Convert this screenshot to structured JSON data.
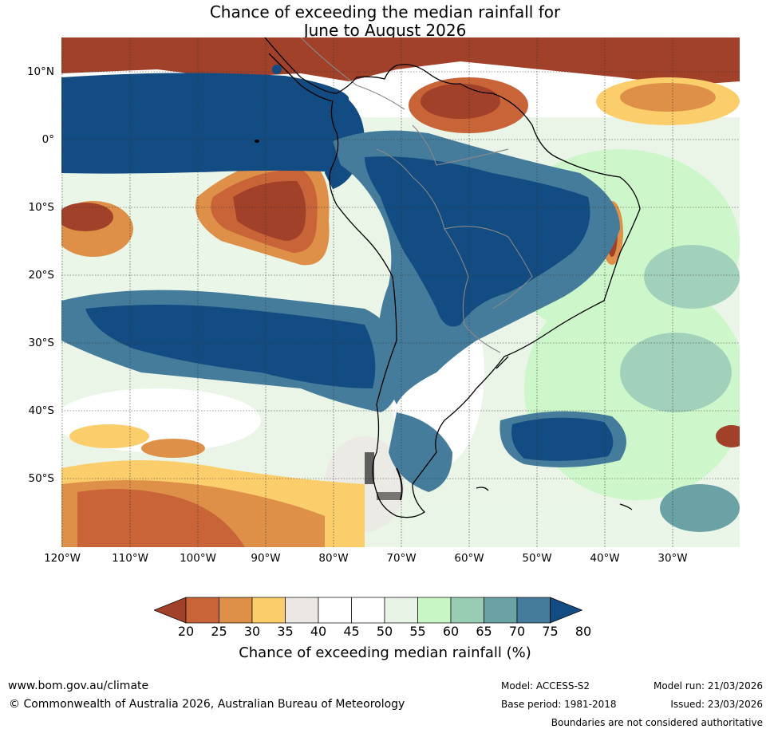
{
  "title": {
    "line1": "Chance of exceeding the median rainfall for",
    "line2": "June to August 2026"
  },
  "map": {
    "latitude_labels": [
      "10°N",
      "0°",
      "10°S",
      "20°S",
      "30°S",
      "40°S",
      "50°S"
    ],
    "longitude_labels": [
      "120°W",
      "110°W",
      "100°W",
      "90°W",
      "80°W",
      "70°W",
      "60°W",
      "50°W",
      "40°W",
      "30°W"
    ]
  },
  "colorbar": {
    "ticks": [
      "20",
      "25",
      "30",
      "35",
      "40",
      "45",
      "50",
      "55",
      "60",
      "65",
      "70",
      "75",
      "80"
    ],
    "colors": [
      "#a2412a",
      "#c86438",
      "#df9048",
      "#fccd6b",
      "#ebe8e3",
      "#ffffff",
      "#ffffff",
      "#e8f5e6",
      "#c8f7c5",
      "#98cdb4",
      "#6aa2a5",
      "#457c9b",
      "#134c82"
    ],
    "title": "Chance of exceeding median rainfall (%)"
  },
  "footer": {
    "website": "www.bom.gov.au/climate",
    "copyright": "© Commonwealth of Australia 2026, Australian Bureau of Meteorology",
    "model": "Model: ACCESS-S2",
    "base_period": "Base period: 1981-2018",
    "model_run": "Model run: 21/03/2026",
    "issued": "Issued: 23/03/2026",
    "disclaimer": "Boundaries are not considered authoritative"
  }
}
